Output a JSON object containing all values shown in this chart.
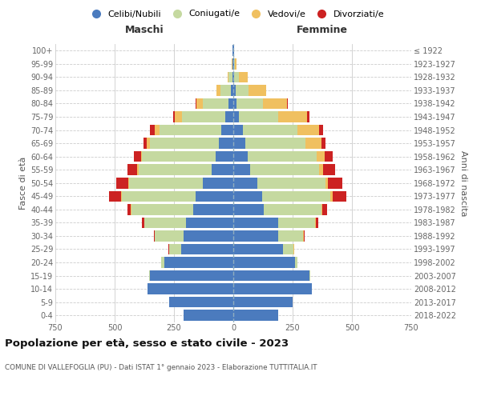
{
  "age_groups": [
    "0-4",
    "5-9",
    "10-14",
    "15-19",
    "20-24",
    "25-29",
    "30-34",
    "35-39",
    "40-44",
    "45-49",
    "50-54",
    "55-59",
    "60-64",
    "65-69",
    "70-74",
    "75-79",
    "80-84",
    "85-89",
    "90-94",
    "95-99",
    "100+"
  ],
  "birth_years": [
    "2018-2022",
    "2013-2017",
    "2008-2012",
    "2003-2007",
    "1998-2002",
    "1993-1997",
    "1988-1992",
    "1983-1987",
    "1978-1982",
    "1973-1977",
    "1968-1972",
    "1963-1967",
    "1958-1962",
    "1953-1957",
    "1948-1952",
    "1943-1947",
    "1938-1942",
    "1933-1937",
    "1928-1932",
    "1923-1927",
    "≤ 1922"
  ],
  "male": {
    "celibi": [
      210,
      270,
      360,
      350,
      290,
      220,
      210,
      200,
      170,
      160,
      130,
      90,
      75,
      60,
      50,
      35,
      20,
      10,
      5,
      2,
      2
    ],
    "coniugati": [
      0,
      0,
      0,
      5,
      15,
      50,
      120,
      175,
      260,
      310,
      310,
      310,
      310,
      290,
      260,
      180,
      110,
      45,
      15,
      3,
      1
    ],
    "vedovi": [
      0,
      0,
      0,
      0,
      0,
      1,
      0,
      1,
      2,
      3,
      3,
      5,
      5,
      15,
      20,
      30,
      25,
      15,
      5,
      1,
      0
    ],
    "divorziati": [
      0,
      0,
      0,
      0,
      0,
      2,
      5,
      10,
      15,
      50,
      50,
      40,
      30,
      15,
      20,
      10,
      5,
      0,
      0,
      0,
      0
    ]
  },
  "female": {
    "nubili": [
      190,
      250,
      330,
      320,
      260,
      210,
      190,
      190,
      130,
      120,
      100,
      70,
      60,
      50,
      40,
      25,
      15,
      10,
      5,
      2,
      2
    ],
    "coniugate": [
      0,
      0,
      0,
      3,
      10,
      45,
      105,
      155,
      240,
      290,
      290,
      290,
      290,
      255,
      230,
      165,
      110,
      55,
      20,
      5,
      1
    ],
    "vedove": [
      0,
      0,
      0,
      0,
      0,
      1,
      1,
      3,
      5,
      8,
      10,
      20,
      35,
      65,
      90,
      120,
      100,
      75,
      35,
      8,
      1
    ],
    "divorziate": [
      0,
      0,
      0,
      0,
      0,
      2,
      5,
      10,
      20,
      60,
      60,
      50,
      35,
      20,
      20,
      10,
      5,
      0,
      0,
      0,
      0
    ]
  },
  "colors": {
    "celibi": "#4B7BBE",
    "coniugati": "#C5D9A0",
    "vedovi": "#F0C060",
    "divorziati": "#CC2222"
  },
  "xlim": 750,
  "title": "Popolazione per età, sesso e stato civile - 2023",
  "subtitle": "COMUNE DI VALLEFOGLIA (PU) - Dati ISTAT 1° gennaio 2023 - Elaborazione TUTTITALIA.IT",
  "ylabel_left": "Fasce di età",
  "ylabel_right": "Anni di nascita",
  "xlabel_left": "Maschi",
  "xlabel_right": "Femmine",
  "background_color": "#ffffff",
  "grid_color": "#cccccc"
}
